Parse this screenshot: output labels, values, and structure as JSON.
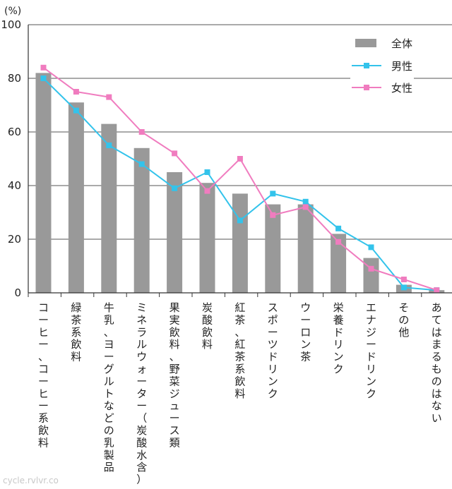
{
  "chart_data": {
    "type": "bar",
    "ylabel": "(%)",
    "ylim": [
      0,
      100
    ],
    "yticks": [
      0,
      20,
      40,
      60,
      80,
      100
    ],
    "grid": true,
    "legend_position": "top-right",
    "categories": [
      "コーヒー、コーヒー系飲料",
      "緑茶系飲料",
      "牛乳、ヨーグルトなどの乳製品",
      "ミネラルウォーター（炭酸水含）",
      "果実飲料、野菜ジュース類",
      "炭酸飲料",
      "紅茶、紅茶系飲料",
      "スポーツドリンク",
      "ウーロン茶",
      "栄養ドリンク",
      "エナジードリンク",
      "その他",
      "あてはまるものはない"
    ],
    "series": [
      {
        "name": "全体",
        "kind": "bar",
        "color": "#999999",
        "values": [
          82,
          71,
          63,
          54,
          45,
          41,
          37,
          33,
          33,
          22,
          13,
          3,
          1
        ]
      },
      {
        "name": "男性",
        "kind": "line",
        "color": "#33c3eb",
        "values": [
          80,
          68,
          55,
          48,
          39,
          45,
          27,
          37,
          34,
          24,
          17,
          2,
          1
        ]
      },
      {
        "name": "女性",
        "kind": "line",
        "color": "#f07cbf",
        "values": [
          84,
          75,
          73,
          60,
          52,
          38,
          50,
          29,
          32,
          19,
          9,
          5,
          1
        ]
      }
    ]
  },
  "watermark": "cycle.rvlvr.co"
}
